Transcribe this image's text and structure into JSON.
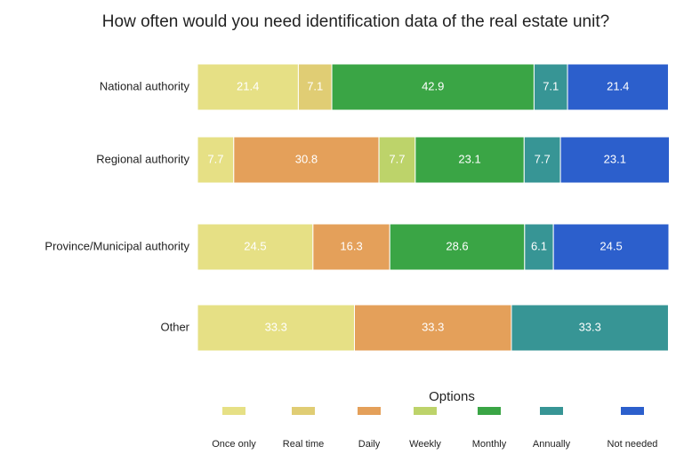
{
  "chart_data": {
    "type": "stacked-bar-horizontal",
    "title": "How often would you need identification data of the real estate unit?",
    "categories": [
      "National authority",
      "Regional authority",
      "Province/Municipal authority",
      "Other"
    ],
    "legend_title": "Options",
    "xlim": [
      0,
      100
    ],
    "series": [
      {
        "name": "Once only",
        "color": "#e6e085",
        "values": [
          21.4,
          7.7,
          24.5,
          33.3
        ]
      },
      {
        "name": "Real time",
        "color": "#e0cd74",
        "values": [
          7.1,
          null,
          null,
          null
        ]
      },
      {
        "name": "Daily",
        "color": "#e4a05a",
        "values": [
          null,
          30.8,
          16.3,
          33.3
        ]
      },
      {
        "name": "Weekly",
        "color": "#bdd36a",
        "values": [
          null,
          7.7,
          null,
          null
        ]
      },
      {
        "name": "Monthly",
        "color": "#3aa545",
        "values": [
          42.9,
          23.1,
          28.6,
          null
        ]
      },
      {
        "name": "Annually",
        "color": "#379595",
        "values": [
          7.1,
          7.7,
          6.1,
          33.3
        ]
      },
      {
        "name": "Not needed",
        "color": "#2c5fcc",
        "values": [
          21.4,
          23.1,
          24.5,
          null
        ]
      }
    ]
  }
}
